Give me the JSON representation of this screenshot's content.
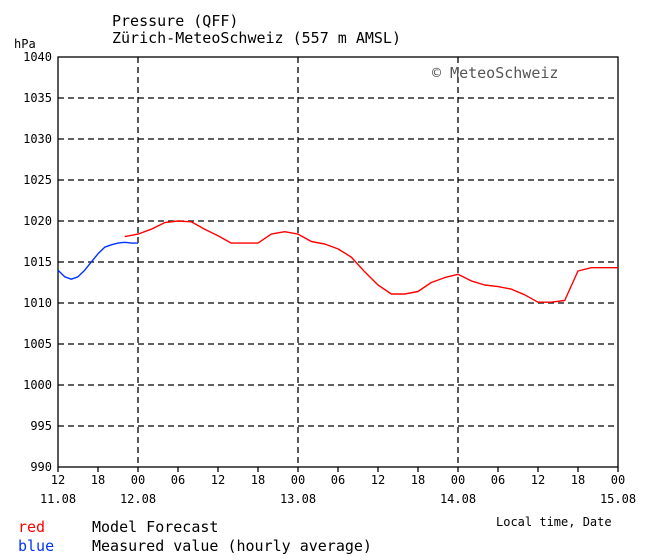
{
  "title": "Pressure (QFF)",
  "subtitle": "Zürich-MeteoSchweiz (557 m AMSL)",
  "unit_label": "hPa",
  "copyright": "© MeteoSchweiz",
  "x_axis_note": "Local time, Date",
  "legend": [
    {
      "color_name": "red",
      "text": "Model Forecast",
      "color": "#ff0000"
    },
    {
      "color_name": "blue",
      "text": "Measured value (hourly average)",
      "color": "#0033ff"
    }
  ],
  "chart_data": {
    "type": "line",
    "title": "Pressure (QFF)",
    "subtitle": "Zürich-MeteoSchweiz (557 m AMSL)",
    "ylabel": "hPa",
    "xlabel": "Local time, Date",
    "ylim": [
      990,
      1040
    ],
    "xlim_hours": [
      0,
      84
    ],
    "yticks": [
      990,
      995,
      1000,
      1005,
      1010,
      1015,
      1020,
      1025,
      1030,
      1035,
      1040
    ],
    "xtick_labels": [
      "12",
      "18",
      "00",
      "06",
      "12",
      "18",
      "00",
      "06",
      "12",
      "18",
      "00",
      "06",
      "12",
      "18",
      "00"
    ],
    "date_labels": [
      {
        "label": "11.08",
        "hour": 0
      },
      {
        "label": "12.08",
        "hour": 12
      },
      {
        "label": "13.08",
        "hour": 36
      },
      {
        "label": "14.08",
        "hour": 60
      },
      {
        "label": "15.08",
        "hour": 84
      }
    ],
    "grid": true,
    "series": [
      {
        "name": "Measured value (hourly average)",
        "color": "#0033ff",
        "x": [
          0,
          1,
          2,
          3,
          4,
          5,
          6,
          7,
          8,
          9,
          10,
          11,
          12
        ],
        "y": [
          1014,
          1013.2,
          1012.9,
          1013.2,
          1014,
          1015,
          1016,
          1016.8,
          1017.1,
          1017.3,
          1017.4,
          1017.3,
          1017.3
        ]
      },
      {
        "name": "Model Forecast",
        "color": "#ff0000",
        "x": [
          10,
          12,
          14,
          16,
          18,
          20,
          22,
          24,
          26,
          28,
          30,
          32,
          34,
          36,
          38,
          40,
          42,
          44,
          46,
          48,
          50,
          52,
          54,
          56,
          58,
          60,
          62,
          64,
          66,
          68,
          70,
          72,
          74,
          76,
          78,
          80,
          82,
          84
        ],
        "y": [
          1018.1,
          1018.4,
          1019,
          1019.8,
          1020,
          1019.9,
          1019,
          1018.2,
          1017.3,
          1017.3,
          1017.3,
          1018.4,
          1018.7,
          1018.4,
          1017.5,
          1017.2,
          1016.6,
          1015.6,
          1013.8,
          1012.2,
          1011.1,
          1011.1,
          1011.4,
          1012.5,
          1013.1,
          1013.5,
          1012.7,
          1012.2,
          1012,
          1011.7,
          1011,
          1010.1,
          1010.1,
          1010.3,
          1013.9,
          1014.3,
          1014.3,
          1014.3
        ]
      }
    ]
  }
}
